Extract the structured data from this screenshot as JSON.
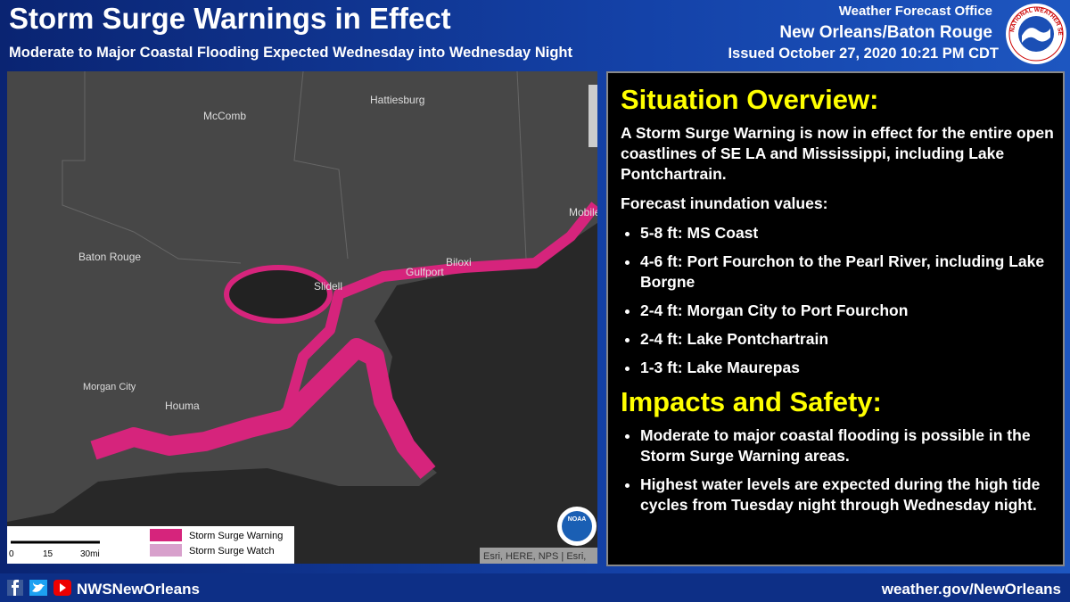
{
  "header": {
    "title": "Storm Surge Warnings in Effect",
    "subtitle": "Moderate to Major Coastal Flooding Expected Wednesday into Wednesday Night",
    "office": "Weather Forecast Office",
    "office_location": "New Orleans/Baton Rouge",
    "issued": "Issued October 27, 2020 10:21 PM CDT",
    "logo_text": "NATIONAL WEATHER SERVICE"
  },
  "map": {
    "places": [
      "Hattiesburg",
      "McComb",
      "Baton Rouge",
      "Slidell",
      "Gulfport",
      "Biloxi",
      "Mobile",
      "Morgan City",
      "Houma"
    ],
    "legend": [
      "Storm Surge Warning",
      "Storm Surge Watch"
    ],
    "scale_labels": [
      "0",
      "15",
      "30mi"
    ],
    "attribution": "Esri, HERE, NPS | Esri,",
    "noaa": "NOAA"
  },
  "overview": {
    "heading": "Situation Overview:",
    "intro": "A Storm Surge Warning is now in effect for the entire open coastlines of SE LA and Mississippi, including Lake Pontchartrain.",
    "forecast_heading": "Forecast inundation values:",
    "forecast": [
      "5-8 ft: MS Coast",
      "4-6 ft: Port Fourchon to the Pearl River, including Lake Borgne",
      "2-4 ft: Morgan City to Port Fourchon",
      "2-4 ft: Lake Pontchartrain",
      "1-3 ft: Lake Maurepas"
    ]
  },
  "impacts": {
    "heading": "Impacts and Safety:",
    "items": [
      "Moderate to major coastal flooding is possible in the Storm Surge Warning areas.",
      "Highest water levels are expected during the high tide cycles from Tuesday night through Wednesday night."
    ]
  },
  "footer": {
    "handle": "NWSNewOrleans",
    "website": "weather.gov/NewOrleans"
  }
}
